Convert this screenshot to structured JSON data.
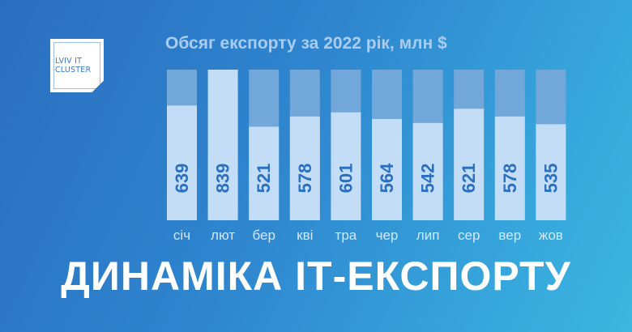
{
  "logo": {
    "line1": "LVIV IT",
    "line2": "CLUSTER"
  },
  "headline": "ДИНАМІКА ІТ-ЕКСПОРТУ",
  "colors": {
    "track": "#72a7d9",
    "bar": "#c3ddf6",
    "value_text": "#2a6fc0",
    "label_text": "#d6e7f8"
  },
  "chart_data": {
    "type": "bar",
    "title": "Обсяг експорту за 2022 рік, млн $",
    "categories": [
      "січ",
      "лют",
      "бер",
      "кві",
      "тра",
      "чер",
      "лип",
      "сер",
      "вер",
      "жов"
    ],
    "values": [
      639,
      839,
      521,
      578,
      601,
      564,
      542,
      621,
      578,
      535
    ],
    "ylim": [
      0,
      839
    ],
    "data_labels": true,
    "data_label_orientation": "vertical"
  }
}
